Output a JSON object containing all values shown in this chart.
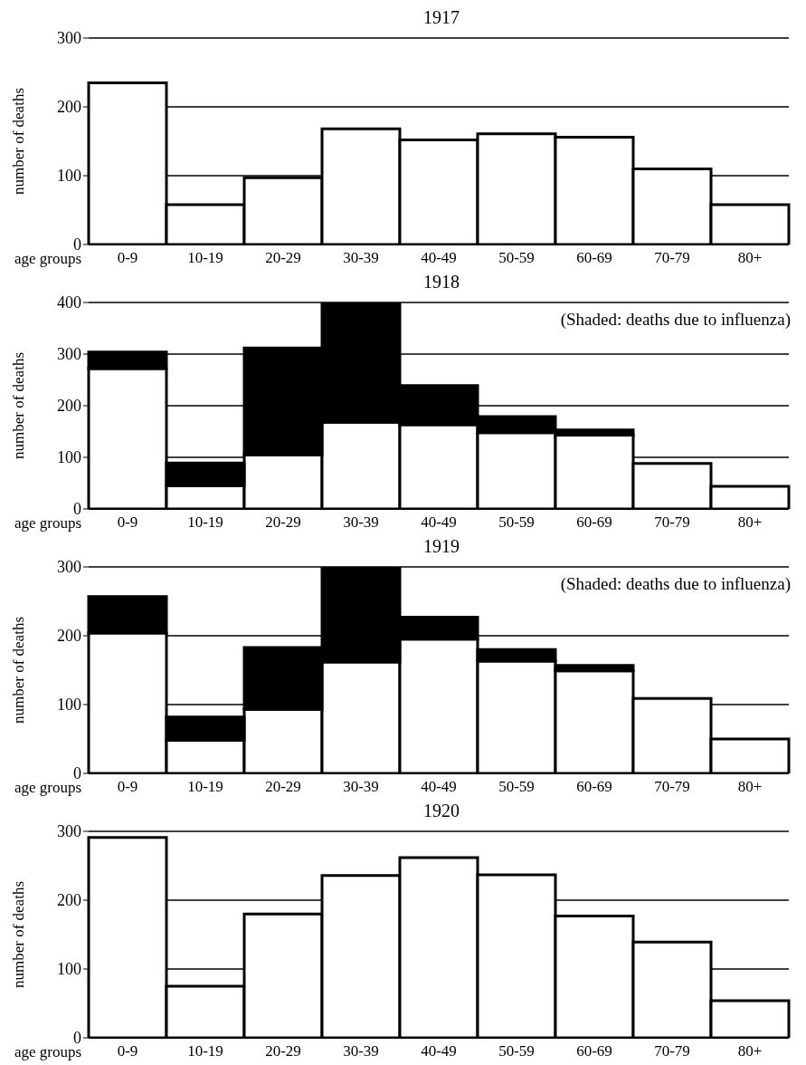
{
  "chart_data": [
    {
      "type": "bar",
      "title": "1917",
      "xlabel": "age groups",
      "ylabel": "number of deaths",
      "categories": [
        "0-9",
        "10-19",
        "20-29",
        "30-39",
        "40-49",
        "50-59",
        "60-69",
        "70-79",
        "80+"
      ],
      "values": [
        235,
        58,
        97,
        168,
        152,
        161,
        156,
        110,
        58
      ],
      "color": "#ffffff",
      "ylim": [
        0,
        300
      ],
      "yticks": [
        0,
        100,
        200,
        300
      ],
      "grid": "y"
    },
    {
      "type": "bar",
      "title": "1918",
      "xlabel": "age groups",
      "ylabel": "number of deaths",
      "annotations": [
        "(Shaded: deaths due to influenza)"
      ],
      "categories": [
        "0-9",
        "10-19",
        "20-29",
        "30-39",
        "40-49",
        "50-59",
        "60-69",
        "70-79",
        "80+"
      ],
      "stacked": true,
      "series": [
        {
          "color": "#ffffff",
          "values": [
            272,
            45,
            105,
            168,
            163,
            148,
            143,
            88,
            44
          ]
        },
        {
          "color": "#000000",
          "values": [
            32,
            44,
            207,
            232,
            76,
            31,
            10,
            0,
            0
          ]
        }
      ],
      "ylim": [
        0,
        400
      ],
      "yticks": [
        0,
        100,
        200,
        300,
        400
      ],
      "grid": "y"
    },
    {
      "type": "bar",
      "title": "1919",
      "xlabel": "age groups",
      "ylabel": "number of deaths",
      "annotations": [
        "(Shaded: deaths due to influenza)"
      ],
      "categories": [
        "0-9",
        "10-19",
        "20-29",
        "30-39",
        "40-49",
        "50-59",
        "60-69",
        "70-79",
        "80+"
      ],
      "stacked": true,
      "series": [
        {
          "color": "#ffffff",
          "values": [
            204,
            48,
            93,
            162,
            195,
            163,
            149,
            109,
            50
          ]
        },
        {
          "color": "#000000",
          "values": [
            53,
            34,
            90,
            138,
            32,
            17,
            8,
            0,
            0
          ]
        }
      ],
      "ylim": [
        0,
        300
      ],
      "yticks": [
        0,
        100,
        200,
        300
      ],
      "grid": "y"
    },
    {
      "type": "bar",
      "title": "1920",
      "xlabel": "age groups",
      "ylabel": "number of deaths",
      "categories": [
        "0-9",
        "10-19",
        "20-29",
        "30-39",
        "40-49",
        "50-59",
        "60-69",
        "70-79",
        "80+"
      ],
      "values": [
        291,
        75,
        180,
        236,
        262,
        237,
        177,
        139,
        54
      ],
      "color": "#ffffff",
      "ylim": [
        0,
        300
      ],
      "yticks": [
        0,
        100,
        200,
        300
      ],
      "grid": "y"
    }
  ]
}
